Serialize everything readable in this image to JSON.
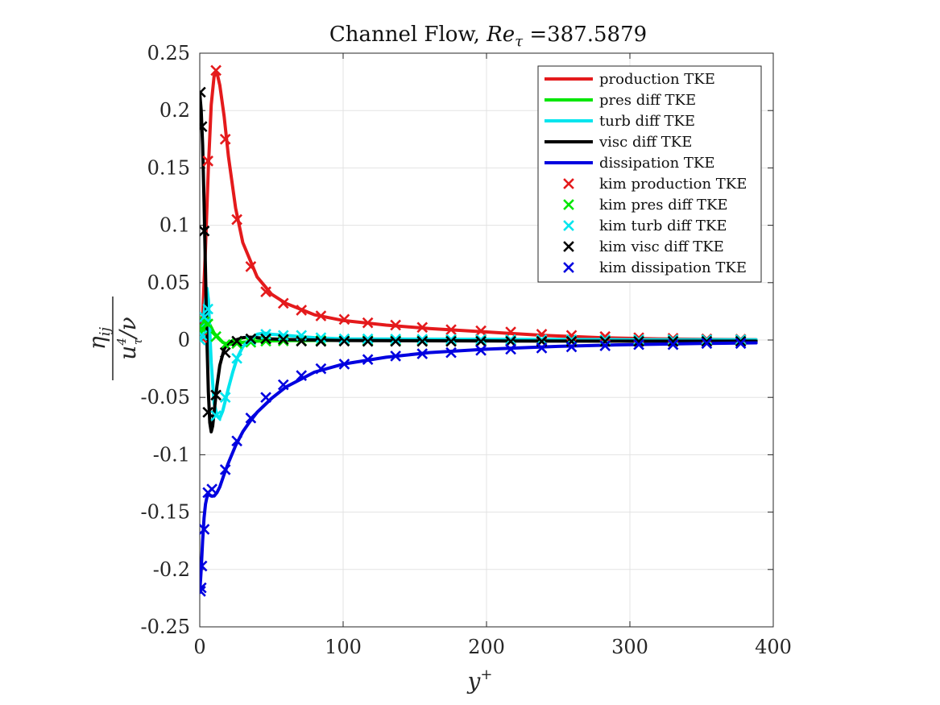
{
  "chart_data": {
    "type": "line",
    "title": "Channel Flow, Reτ =387.5879",
    "title_parts": {
      "prefix": "Channel Flow, ",
      "var_main": "Re",
      "var_sub": "τ",
      "suffix": " =387.5879"
    },
    "xlabel": "y+",
    "xlabel_parts": {
      "main": "y",
      "sup": "+"
    },
    "ylabel": "ηij / (uτ⁴/ν)",
    "ylabel_parts": {
      "num_main": "η",
      "num_sub": "ij",
      "den_main": "u",
      "den_sup": "4",
      "den_sub": "τ",
      "den_tail": "/ν"
    },
    "xlim": [
      0,
      400
    ],
    "ylim": [
      -0.25,
      0.25
    ],
    "x_ticks": [
      0,
      100,
      200,
      300,
      400
    ],
    "x_tick_labels": [
      "0",
      "100",
      "200",
      "300",
      "400"
    ],
    "y_ticks": [
      0.25,
      0.2,
      0.15,
      0.1,
      0.05,
      0,
      -0.05,
      -0.1,
      -0.15,
      -0.2,
      -0.25
    ],
    "y_tick_labels": [
      "0.25",
      "0.2",
      "0.15",
      "0.1",
      "0.05",
      "0",
      "-0.05",
      "-0.1",
      "-0.15",
      "-0.2",
      "-0.25"
    ],
    "grid": true,
    "legend_position": "top-right",
    "series": [
      {
        "name": "production TKE",
        "kind": "line",
        "color": "#e41a1c",
        "x": [
          0,
          2,
          4,
          6,
          8,
          10,
          12,
          14,
          17,
          20,
          25,
          30,
          40,
          50,
          60,
          80,
          100,
          130,
          160,
          200,
          240,
          280,
          320,
          360,
          388
        ],
        "y": [
          0,
          0.02,
          0.08,
          0.15,
          0.205,
          0.23,
          0.233,
          0.222,
          0.195,
          0.16,
          0.115,
          0.085,
          0.055,
          0.04,
          0.032,
          0.022,
          0.017,
          0.013,
          0.01,
          0.007,
          0.004,
          0.002,
          0.001,
          0.0005,
          0.0003
        ]
      },
      {
        "name": "pres diff TKE",
        "kind": "line",
        "color": "#00e600",
        "x": [
          0,
          2,
          4,
          6,
          8,
          10,
          13,
          16,
          20,
          25,
          30,
          40,
          60,
          100,
          200,
          300,
          388
        ],
        "y": [
          0.006,
          0.012,
          0.018,
          0.016,
          0.011,
          0.006,
          0.002,
          -0.002,
          -0.004,
          -0.003,
          -0.002,
          -0.001,
          -0.0005,
          -0.0003,
          0.0,
          0.0,
          0.0
        ]
      },
      {
        "name": "turb diff TKE",
        "kind": "line",
        "color": "#00e5ee",
        "x": [
          0,
          2,
          4,
          5,
          6,
          8,
          10,
          12,
          14,
          16,
          18,
          20,
          23,
          26,
          30,
          35,
          40,
          45,
          50,
          60,
          80,
          100,
          200,
          300,
          388
        ],
        "y": [
          0,
          0.01,
          0.035,
          0.045,
          0.035,
          -0.02,
          -0.055,
          -0.066,
          -0.068,
          -0.062,
          -0.052,
          -0.042,
          -0.028,
          -0.016,
          -0.006,
          0.001,
          0.005,
          0.006,
          0.005,
          0.004,
          0.002,
          0.001,
          0.0006,
          0.0003,
          0.0002
        ]
      },
      {
        "name": "visc diff TKE",
        "kind": "line",
        "color": "#000000",
        "x": [
          0,
          1,
          2,
          3,
          4,
          5,
          6,
          7,
          8,
          9,
          10,
          12,
          14,
          17,
          20,
          25,
          30,
          35,
          40,
          50,
          60,
          80,
          100,
          200,
          300,
          388
        ],
        "y": [
          0.215,
          0.2,
          0.17,
          0.12,
          0.06,
          0.0,
          -0.045,
          -0.072,
          -0.08,
          -0.075,
          -0.063,
          -0.04,
          -0.022,
          -0.008,
          -0.002,
          0.0,
          0.002,
          0.0025,
          0.002,
          0.001,
          0.0004,
          0.0,
          -0.0004,
          -0.0008,
          -0.001,
          -0.001
        ]
      },
      {
        "name": "dissipation TKE",
        "kind": "line",
        "color": "#0000e0",
        "x": [
          0,
          1,
          2,
          3,
          4,
          5,
          6,
          7,
          8,
          10,
          12,
          14,
          17,
          20,
          25,
          30,
          35,
          40,
          50,
          60,
          80,
          100,
          130,
          160,
          200,
          250,
          300,
          350,
          388
        ],
        "y": [
          -0.22,
          -0.2,
          -0.175,
          -0.155,
          -0.143,
          -0.137,
          -0.135,
          -0.135,
          -0.136,
          -0.136,
          -0.133,
          -0.128,
          -0.117,
          -0.107,
          -0.092,
          -0.08,
          -0.071,
          -0.063,
          -0.051,
          -0.041,
          -0.028,
          -0.021,
          -0.015,
          -0.011,
          -0.008,
          -0.0055,
          -0.004,
          -0.003,
          -0.0025
        ]
      },
      {
        "name": "kim production TKE",
        "kind": "marker",
        "color": "#e41a1c",
        "x": [
          0.5,
          1.5,
          3.1,
          5.7,
          11.3,
          17.8,
          25.9,
          35.6,
          46.1,
          58.3,
          70.9,
          84.5,
          100.8,
          117.2,
          136.6,
          155.2,
          175.3,
          196.1,
          216.9,
          238.5,
          259.3,
          282.7,
          306.2,
          330.1,
          353.6,
          377.3
        ],
        "y": [
          0.0,
          0.002,
          0.016,
          0.156,
          0.235,
          0.175,
          0.105,
          0.064,
          0.042,
          0.032,
          0.026,
          0.021,
          0.018,
          0.015,
          0.013,
          0.011,
          0.009,
          0.008,
          0.007,
          0.005,
          0.004,
          0.003,
          0.002,
          0.0015,
          0.001,
          0.0007
        ]
      },
      {
        "name": "kim pres diff TKE",
        "kind": "marker",
        "color": "#00e600",
        "x": [
          0.5,
          1.5,
          3.1,
          5.7,
          11.3,
          17.8,
          25.9,
          35.6,
          46.1,
          58.3,
          70.9,
          84.5,
          100.8,
          117.2,
          136.6,
          155.2,
          175.3,
          196.1,
          216.9,
          238.5,
          259.3,
          282.7,
          306.2,
          330.1,
          353.6,
          377.3
        ],
        "y": [
          0.006,
          0.01,
          0.016,
          0.014,
          0.003,
          -0.004,
          -0.003,
          -0.002,
          -0.001,
          -0.0008,
          -0.0006,
          -0.0005,
          -0.0004,
          -0.0003,
          -0.0002,
          -0.0002,
          0.0,
          0.0,
          0.0,
          0.0,
          0.0,
          0.0,
          0.0,
          0.0,
          0.0,
          0.0
        ]
      },
      {
        "name": "kim turb diff TKE",
        "kind": "marker",
        "color": "#00e5ee",
        "x": [
          0.5,
          1.5,
          3.1,
          5.7,
          11.3,
          17.8,
          25.9,
          35.6,
          46.1,
          58.3,
          70.9,
          84.5,
          100.8,
          117.2,
          136.6,
          155.2,
          175.3,
          196.1,
          216.9,
          238.5,
          259.3,
          282.7,
          306.2,
          330.1,
          353.6,
          377.3
        ],
        "y": [
          0.0,
          0.004,
          0.02,
          0.027,
          -0.066,
          -0.05,
          -0.016,
          0.0,
          0.005,
          0.004,
          0.004,
          0.002,
          0.001,
          0.001,
          0.0008,
          0.0006,
          0.0005,
          0.0004,
          0.0003,
          0.0003,
          0.0003,
          0.0002,
          0.0002,
          0.0002,
          0.0002,
          0.0002
        ]
      },
      {
        "name": "kim visc diff TKE",
        "kind": "marker",
        "color": "#000000",
        "x": [
          0.5,
          1.5,
          3.1,
          5.7,
          11.3,
          17.8,
          25.9,
          35.6,
          46.1,
          58.3,
          70.9,
          84.5,
          100.8,
          117.2,
          136.6,
          155.2,
          175.3,
          196.1,
          216.9,
          238.5,
          259.3,
          282.7,
          306.2,
          330.1,
          353.6,
          377.3
        ],
        "y": [
          0.216,
          0.186,
          0.095,
          -0.063,
          -0.048,
          -0.011,
          -0.001,
          0.001,
          0.001,
          0.0005,
          -0.001,
          -0.0012,
          -0.001,
          -0.0012,
          -0.0012,
          -0.0012,
          -0.0012,
          -0.0012,
          -0.0012,
          -0.0012,
          -0.0012,
          -0.0012,
          -0.0012,
          -0.0012,
          -0.0012,
          -0.0012
        ]
      },
      {
        "name": "kim dissipation TKE",
        "kind": "marker",
        "color": "#0000e0",
        "x": [
          0.5,
          1.0,
          1.5,
          3.1,
          5.7,
          8.5,
          17.8,
          25.9,
          35.6,
          46.1,
          58.3,
          70.9,
          84.5,
          100.8,
          117.2,
          136.6,
          155.2,
          175.3,
          196.1,
          216.9,
          238.5,
          259.3,
          282.7,
          306.2,
          330.1,
          353.6,
          377.3
        ],
        "y": [
          -0.219,
          -0.216,
          -0.197,
          -0.165,
          -0.133,
          -0.13,
          -0.113,
          -0.088,
          -0.068,
          -0.05,
          -0.039,
          -0.031,
          -0.025,
          -0.021,
          -0.017,
          -0.014,
          -0.012,
          -0.011,
          -0.009,
          -0.008,
          -0.007,
          -0.006,
          -0.005,
          -0.004,
          -0.004,
          -0.003,
          -0.003
        ]
      }
    ]
  }
}
